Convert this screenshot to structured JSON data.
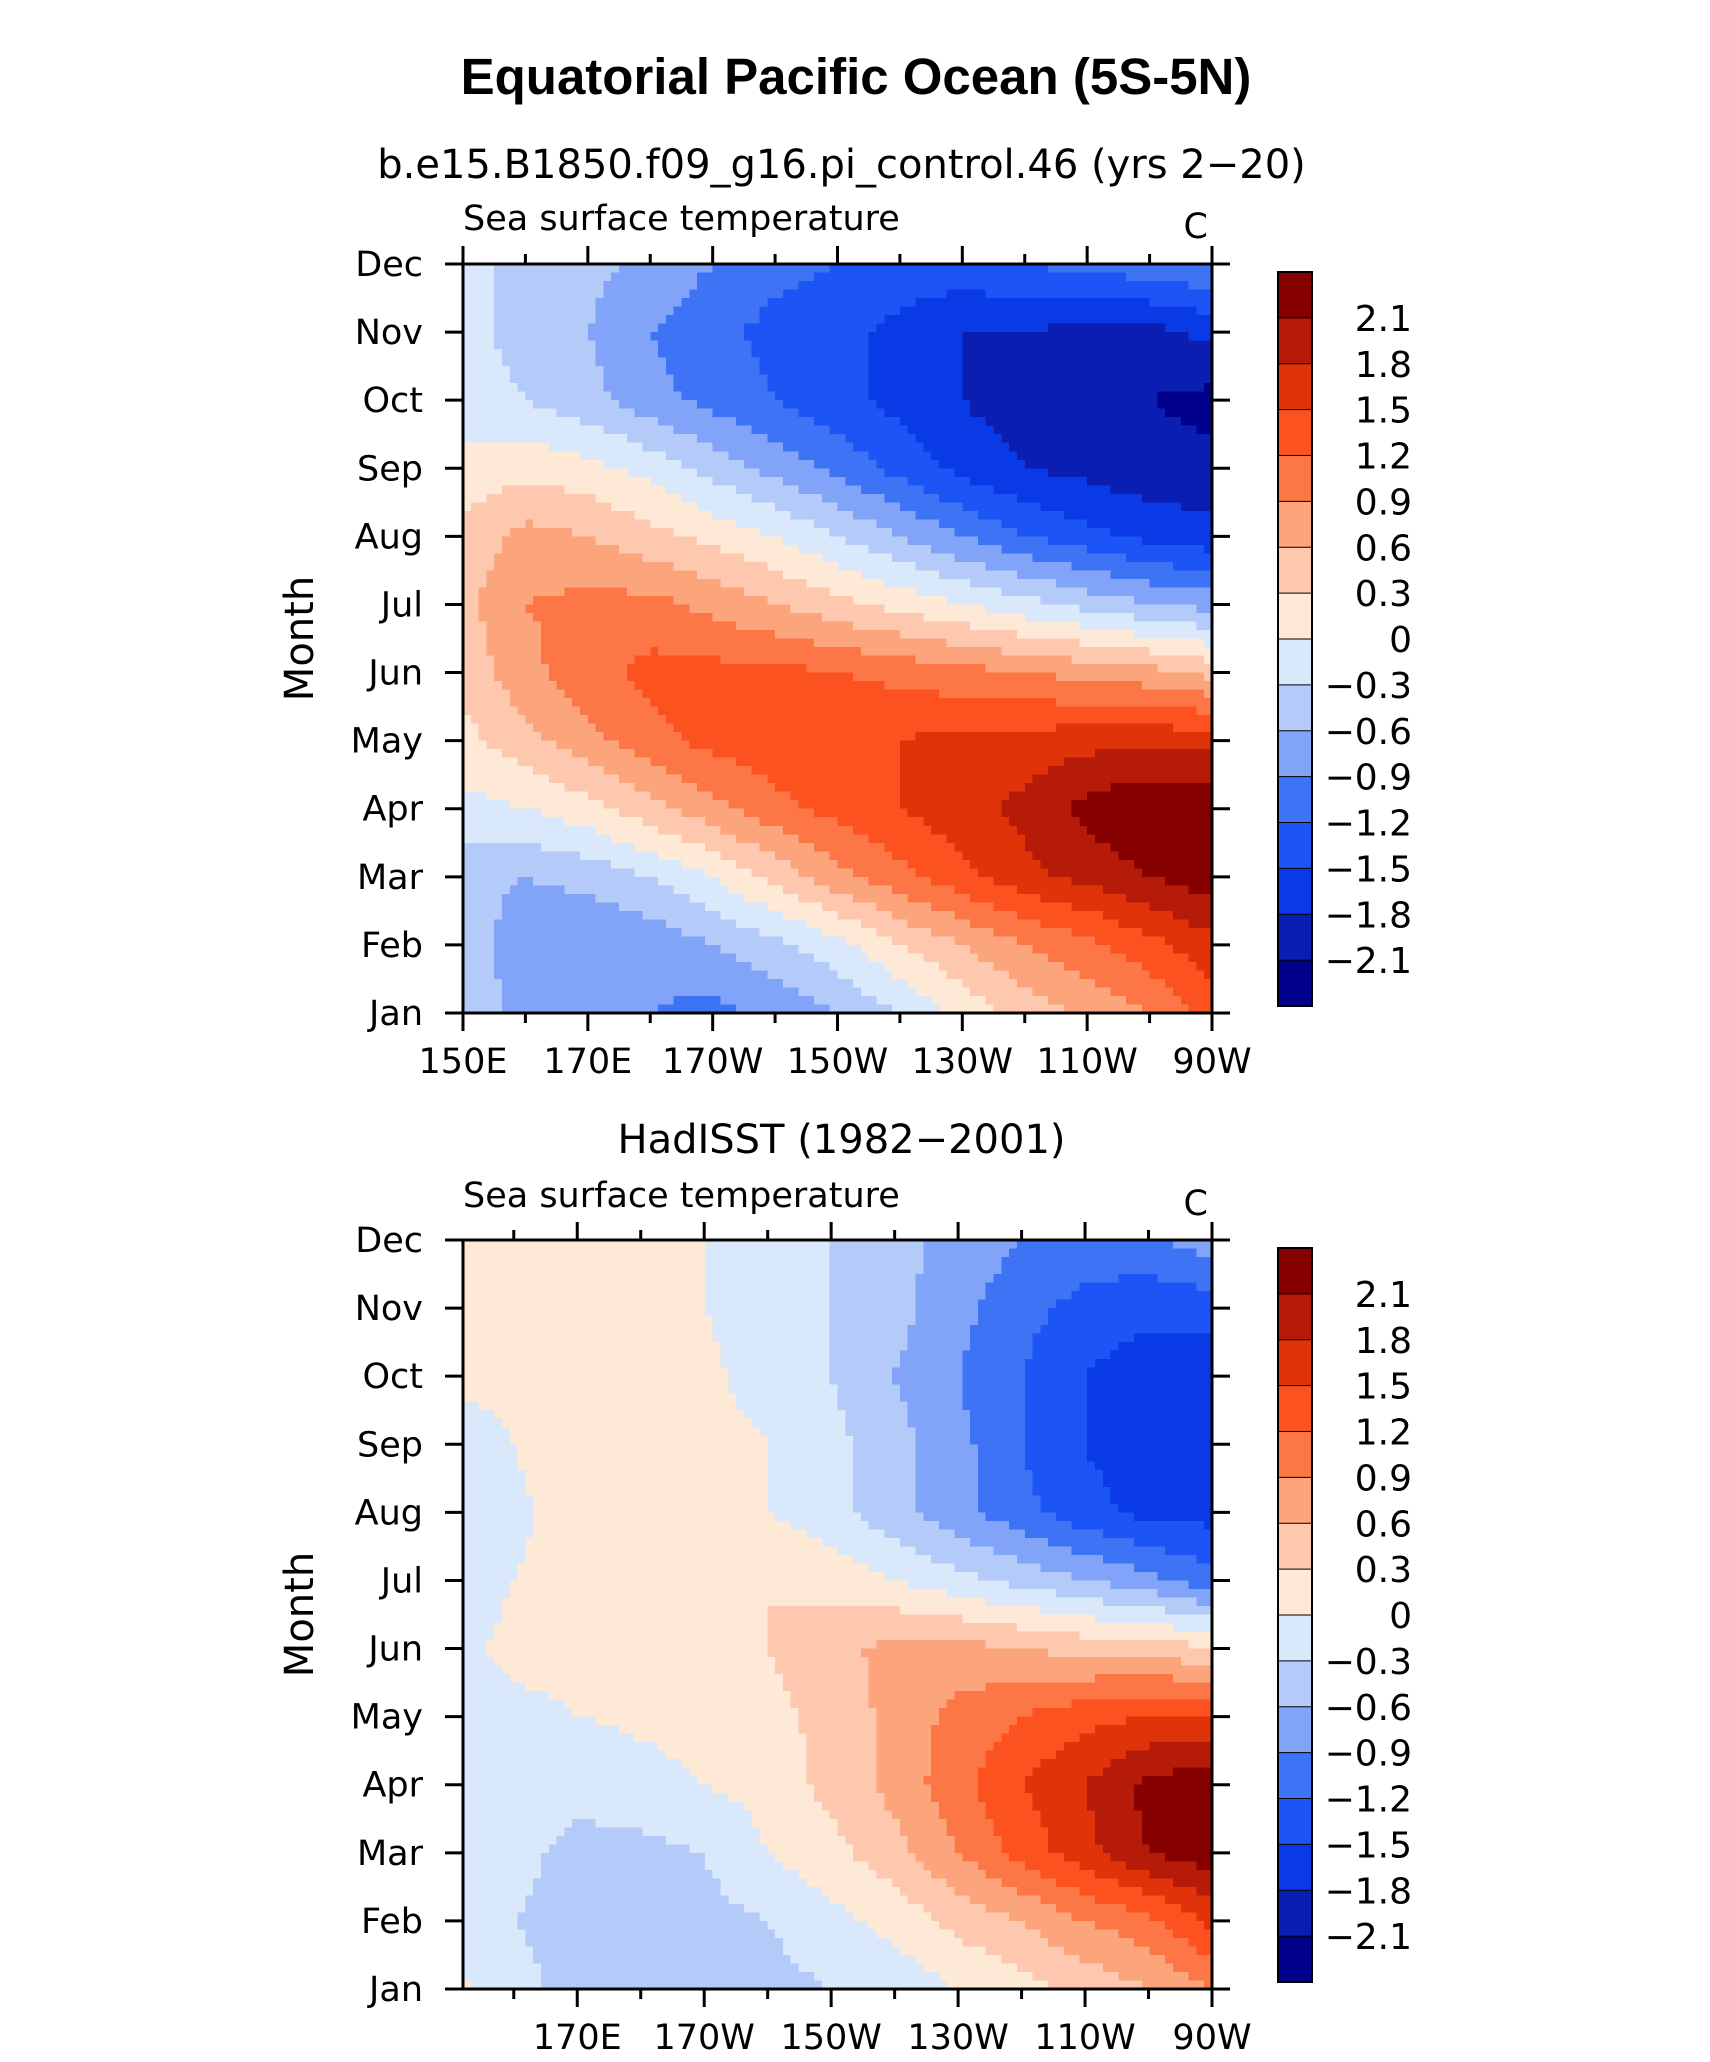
{
  "page": {
    "title": "Equatorial Pacific Ocean (5S-5N)"
  },
  "chart_data": [
    {
      "type": "heatmap",
      "title": "b.e15.B1850.f09_g16.pi_control.46 (yrs 2−20)",
      "left_string": "Sea surface temperature",
      "right_string": "C",
      "ylabel": "Month",
      "x_tick_labels": [
        "150E",
        "170E",
        "170W",
        "150W",
        "130W",
        "110W",
        "90W"
      ],
      "x_tick_values": [
        150,
        170,
        190,
        210,
        230,
        250,
        270
      ],
      "y_tick_labels": [
        "Jan",
        "Feb",
        "Mar",
        "Apr",
        "May",
        "Jun",
        "Jul",
        "Aug",
        "Sep",
        "Oct",
        "Nov",
        "Dec"
      ],
      "xlim": [
        150,
        270
      ],
      "ylim": [
        1,
        12
      ],
      "x": [
        150,
        160,
        170,
        180,
        190,
        200,
        210,
        220,
        230,
        240,
        250,
        260,
        270
      ],
      "y": [
        1,
        2,
        3,
        4,
        5,
        6,
        7,
        8,
        9,
        10,
        11,
        12
      ],
      "values": [
        [
          -0.4,
          -0.7,
          -0.8,
          -0.9,
          -1.0,
          -0.8,
          -0.6,
          -0.3,
          0.1,
          0.4,
          0.7,
          0.9,
          1.3
        ],
        [
          -0.4,
          -0.8,
          -0.9,
          -0.8,
          -0.6,
          -0.4,
          -0.1,
          0.3,
          0.6,
          0.9,
          1.1,
          1.4,
          1.7
        ],
        [
          -0.5,
          -0.6,
          -0.5,
          -0.3,
          0.0,
          0.4,
          0.8,
          1.1,
          1.4,
          1.7,
          1.9,
          2.1,
          2.3
        ],
        [
          -0.1,
          0.0,
          0.2,
          0.5,
          0.8,
          1.1,
          1.3,
          1.5,
          1.7,
          1.9,
          2.2,
          2.4,
          2.4
        ],
        [
          0.2,
          0.5,
          0.8,
          1.1,
          1.3,
          1.4,
          1.5,
          1.5,
          1.6,
          1.6,
          1.7,
          1.7,
          1.7
        ],
        [
          0.4,
          0.8,
          1.1,
          1.3,
          1.3,
          1.3,
          1.2,
          1.1,
          1.0,
          0.9,
          0.8,
          0.7,
          0.5
        ],
        [
          0.5,
          0.9,
          1.0,
          1.0,
          0.8,
          0.6,
          0.4,
          0.2,
          0.0,
          -0.2,
          -0.4,
          -0.6,
          -0.7
        ],
        [
          0.4,
          0.7,
          0.6,
          0.4,
          0.2,
          0.0,
          -0.3,
          -0.6,
          -0.9,
          -1.2,
          -1.4,
          -1.6,
          -1.7
        ],
        [
          0.1,
          0.2,
          0.1,
          -0.1,
          -0.4,
          -0.7,
          -1.0,
          -1.3,
          -1.6,
          -1.8,
          -1.9,
          -2.0,
          -2.0
        ],
        [
          -0.2,
          -0.3,
          -0.5,
          -0.8,
          -1.0,
          -1.2,
          -1.4,
          -1.6,
          -1.8,
          -2.0,
          -2.0,
          -2.1,
          -2.2
        ],
        [
          -0.2,
          -0.4,
          -0.6,
          -0.9,
          -1.1,
          -1.3,
          -1.4,
          -1.6,
          -1.8,
          -1.8,
          -1.9,
          -1.9,
          -1.7
        ],
        [
          -0.2,
          -0.4,
          -0.5,
          -0.7,
          -0.9,
          -1.1,
          -1.2,
          -1.3,
          -1.3,
          -1.2,
          -1.1,
          -1.0,
          -0.9
        ]
      ],
      "levels": [
        -2.1,
        -1.8,
        -1.5,
        -1.2,
        -0.9,
        -0.6,
        -0.3,
        0,
        0.3,
        0.6,
        0.9,
        1.2,
        1.5,
        1.8,
        2.1
      ],
      "colors": [
        "#00008a",
        "#0a1fb2",
        "#0a3ae6",
        "#1c54f5",
        "#3f73f5",
        "#81a4f9",
        "#b4caf9",
        "#d9e8fb",
        "#fde9d6",
        "#fdc8ad",
        "#fca47c",
        "#fc7745",
        "#fb521f",
        "#e1330a",
        "#b51b08",
        "#870000"
      ],
      "colorbar_labels": [
        "2.1",
        "1.8",
        "1.5",
        "1.2",
        "0.9",
        "0.6",
        "0.3",
        "0",
        "−0.3",
        "−0.6",
        "−0.9",
        "−1.2",
        "−1.5",
        "−1.8",
        "−2.1"
      ]
    },
    {
      "type": "heatmap",
      "title": "HadISST (1982−2001)",
      "left_string": "Sea surface temperature",
      "right_string": "C",
      "ylabel": "Month",
      "x_tick_labels": [
        "170E",
        "170W",
        "150W",
        "130W",
        "110W",
        "90W"
      ],
      "x_tick_values": [
        170,
        190,
        210,
        230,
        250,
        270
      ],
      "y_tick_labels": [
        "Jan",
        "Feb",
        "Mar",
        "Apr",
        "May",
        "Jun",
        "Jul",
        "Aug",
        "Sep",
        "Oct",
        "Nov",
        "Dec"
      ],
      "xlim": [
        152,
        270
      ],
      "ylim": [
        1,
        12
      ],
      "x": [
        152,
        160,
        170,
        180,
        190,
        200,
        210,
        220,
        230,
        240,
        250,
        260,
        270
      ],
      "y": [
        1,
        2,
        3,
        4,
        5,
        6,
        7,
        8,
        9,
        10,
        11,
        12
      ],
      "values": [
        [
          0.05,
          -0.2,
          -0.4,
          -0.4,
          -0.4,
          -0.4,
          -0.3,
          -0.2,
          0.0,
          0.2,
          0.4,
          0.6,
          0.9
        ],
        [
          -0.2,
          -0.3,
          -0.4,
          -0.4,
          -0.4,
          -0.3,
          -0.1,
          0.1,
          0.4,
          0.6,
          0.9,
          1.1,
          1.6
        ],
        [
          -0.2,
          -0.2,
          -0.4,
          -0.4,
          -0.3,
          0.0,
          0.2,
          0.5,
          0.9,
          1.3,
          1.7,
          2.1,
          2.3
        ],
        [
          -0.2,
          -0.1,
          -0.2,
          -0.1,
          0.0,
          0.1,
          0.4,
          0.7,
          1.1,
          1.5,
          1.8,
          2.2,
          2.3
        ],
        [
          -0.1,
          -0.1,
          0.0,
          0.05,
          0.1,
          0.2,
          0.4,
          0.7,
          1.0,
          1.2,
          1.4,
          1.5,
          1.5
        ],
        [
          -0.1,
          0.1,
          0.1,
          0.1,
          0.1,
          0.3,
          0.5,
          0.7,
          0.7,
          0.6,
          0.5,
          0.5,
          0.3
        ],
        [
          -0.2,
          0.0,
          0.1,
          0.1,
          0.2,
          0.3,
          0.2,
          0.0,
          -0.2,
          -0.4,
          -0.6,
          -0.8,
          -1.1
        ],
        [
          -0.2,
          -0.05,
          0.1,
          0.2,
          0.1,
          0.0,
          -0.2,
          -0.5,
          -0.8,
          -1.1,
          -1.4,
          -1.6,
          -1.6
        ],
        [
          -0.1,
          0.0,
          0.2,
          0.3,
          0.1,
          0.0,
          -0.2,
          -0.5,
          -0.8,
          -1.2,
          -1.5,
          -1.7,
          -1.6
        ],
        [
          0.05,
          0.05,
          0.1,
          0.1,
          0.05,
          -0.1,
          -0.3,
          -0.6,
          -0.9,
          -1.2,
          -1.5,
          -1.7,
          -1.7
        ],
        [
          0.05,
          0.05,
          0.05,
          0.05,
          0.0,
          -0.1,
          -0.3,
          -0.5,
          -0.8,
          -1.1,
          -1.3,
          -1.4,
          -1.4
        ],
        [
          0.05,
          0.05,
          0.05,
          0.05,
          0.0,
          -0.1,
          -0.3,
          -0.5,
          -0.7,
          -0.9,
          -1.0,
          -1.0,
          -0.7
        ]
      ],
      "levels": [
        -2.1,
        -1.8,
        -1.5,
        -1.2,
        -0.9,
        -0.6,
        -0.3,
        0,
        0.3,
        0.6,
        0.9,
        1.2,
        1.5,
        1.8,
        2.1
      ],
      "colors": [
        "#00008a",
        "#0a1fb2",
        "#0a3ae6",
        "#1c54f5",
        "#3f73f5",
        "#81a4f9",
        "#b4caf9",
        "#d9e8fb",
        "#fde9d6",
        "#fdc8ad",
        "#fca47c",
        "#fc7745",
        "#fb521f",
        "#e1330a",
        "#b51b08",
        "#870000"
      ],
      "colorbar_labels": [
        "2.1",
        "1.8",
        "1.5",
        "1.2",
        "0.9",
        "0.6",
        "0.3",
        "0",
        "−0.3",
        "−0.6",
        "−0.9",
        "−1.2",
        "−1.5",
        "−1.8",
        "−2.1"
      ]
    }
  ]
}
